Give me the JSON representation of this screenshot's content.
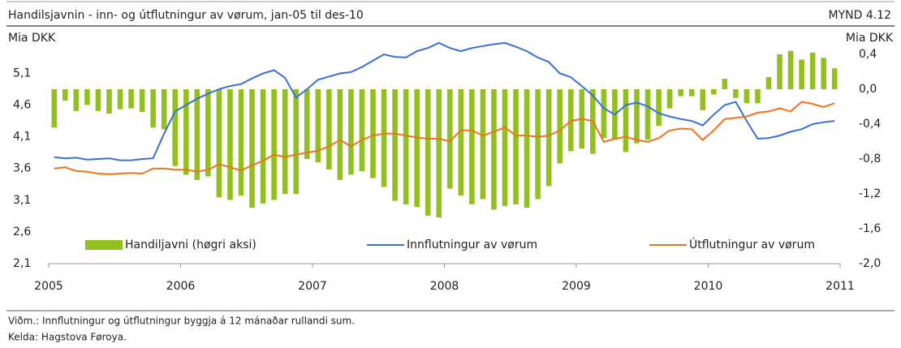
{
  "chart_data": {
    "type": "bar_line",
    "title": "Handilsjavnin - inn- og útflutningur av vørum, jan-05 til des-10",
    "figure_label": "MYND 4.12",
    "ylabel": "Mia DKK",
    "y2label": "Mia DKK",
    "note": "Viðm.: Innflutningur og útflutningur byggja á 12 mánaðar rullandi sum.",
    "source": "Kelda: Hagstova Føroya.",
    "xlim": [
      2005,
      2011
    ],
    "xticks": [
      2005,
      2006,
      2007,
      2008,
      2009,
      2010,
      2011
    ],
    "ylim": [
      2.1,
      5.4
    ],
    "yticks": [
      {
        "value": 2.1,
        "label": "2,1"
      },
      {
        "value": 2.6,
        "label": "2,6"
      },
      {
        "value": 3.1,
        "label": "3,1"
      },
      {
        "value": 3.6,
        "label": "3,6"
      },
      {
        "value": 4.1,
        "label": "4,1"
      },
      {
        "value": 4.6,
        "label": "4,6"
      },
      {
        "value": 5.1,
        "label": "5,1"
      }
    ],
    "y2lim": [
      -2.0,
      0.4
    ],
    "y2ticks": [
      {
        "value": -2.0,
        "label": "-2,0"
      },
      {
        "value": -1.6,
        "label": "-1,6"
      },
      {
        "value": -1.2,
        "label": "-1,2"
      },
      {
        "value": -0.8,
        "label": "-0,8"
      },
      {
        "value": -0.4,
        "label": "-0,4"
      },
      {
        "value": 0.0,
        "label": "0,0"
      },
      {
        "value": 0.4,
        "label": "0,4"
      }
    ],
    "series": [
      {
        "name": "Handiljavni (høgri aksi)",
        "type": "bar",
        "axis": "y2",
        "color": "#92c01f",
        "values": [
          -0.44,
          -0.13,
          -0.25,
          -0.18,
          -0.25,
          -0.28,
          -0.23,
          -0.22,
          -0.26,
          -0.44,
          -0.46,
          -0.88,
          -0.98,
          -1.04,
          -1.0,
          -1.24,
          -1.27,
          -1.22,
          -1.36,
          -1.31,
          -1.27,
          -1.2,
          -1.2,
          -0.8,
          -0.84,
          -0.92,
          -1.04,
          -0.98,
          -0.94,
          -1.02,
          -1.12,
          -1.28,
          -1.32,
          -1.35,
          -1.45,
          -1.47,
          -1.14,
          -1.22,
          -1.32,
          -1.26,
          -1.38,
          -1.34,
          -1.32,
          -1.36,
          -1.26,
          -1.11,
          -0.85,
          -0.71,
          -0.68,
          -0.74,
          -0.56,
          -0.58,
          -0.72,
          -0.62,
          -0.58,
          -0.42,
          -0.22,
          -0.08,
          -0.08,
          -0.24,
          -0.06,
          0.12,
          -0.1,
          -0.16,
          -0.16,
          0.14,
          0.4,
          0.44,
          0.34,
          0.42,
          0.36,
          0.24
        ]
      },
      {
        "name": "Innflutningur av vørum",
        "type": "line",
        "color": "#3a6fd8",
        "values": [
          3.78,
          3.76,
          3.77,
          3.74,
          3.75,
          3.76,
          3.73,
          3.73,
          3.75,
          3.76,
          4.15,
          4.5,
          4.6,
          4.7,
          4.78,
          4.85,
          4.9,
          4.93,
          5.02,
          5.1,
          5.15,
          5.03,
          4.72,
          4.85,
          5.0,
          5.05,
          5.1,
          5.12,
          5.2,
          5.3,
          5.4,
          5.36,
          5.35,
          5.45,
          5.5,
          5.58,
          5.5,
          5.45,
          5.5,
          5.53,
          5.56,
          5.58,
          5.52,
          5.45,
          5.35,
          5.28,
          5.1,
          5.04,
          4.9,
          4.75,
          4.55,
          4.45,
          4.6,
          4.64,
          4.58,
          4.47,
          4.42,
          4.38,
          4.35,
          4.28,
          4.45,
          4.6,
          4.65,
          4.35,
          4.07,
          4.08,
          4.12,
          4.18,
          4.22,
          4.3,
          4.33,
          4.35
        ]
      },
      {
        "name": "Útflutningur av vørum",
        "type": "line",
        "color": "#f0731c",
        "values": [
          3.6,
          3.62,
          3.56,
          3.55,
          3.52,
          3.51,
          3.52,
          3.53,
          3.52,
          3.6,
          3.6,
          3.58,
          3.58,
          3.55,
          3.58,
          3.67,
          3.62,
          3.57,
          3.65,
          3.72,
          3.82,
          3.78,
          3.82,
          3.85,
          3.88,
          3.95,
          4.05,
          3.95,
          4.05,
          4.12,
          4.15,
          4.15,
          4.12,
          4.09,
          4.07,
          4.07,
          4.03,
          4.2,
          4.2,
          4.12,
          4.18,
          4.25,
          4.12,
          4.12,
          4.1,
          4.12,
          4.2,
          4.35,
          4.38,
          4.35,
          4.02,
          4.07,
          4.1,
          4.05,
          4.02,
          4.08,
          4.2,
          4.23,
          4.22,
          4.05,
          4.2,
          4.38,
          4.4,
          4.42,
          4.48,
          4.5,
          4.55,
          4.5,
          4.65,
          4.62,
          4.57,
          4.63
        ]
      }
    ]
  }
}
